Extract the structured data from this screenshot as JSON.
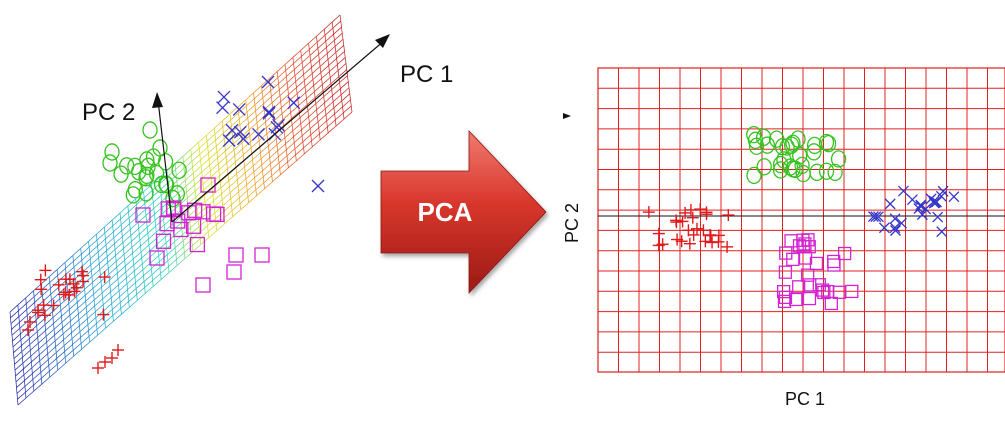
{
  "left_panel": {
    "axis_pc1_label": "PC 1",
    "axis_pc2_label": "PC 2"
  },
  "arrow": {
    "label": "PCA",
    "color_light": "#e8534a",
    "color_dark": "#a01e17"
  },
  "right_panel": {
    "xlabel": "PC 1",
    "ylabel": "PC 2",
    "grid_color": "#e02020"
  },
  "colors": {
    "cross_class": "#e01a1a",
    "circle_class": "#36c21f",
    "x_class": "#3535c9",
    "square_class": "#d323d3"
  },
  "legend_marker_names": [
    "plus-marker",
    "circle-marker",
    "x-marker",
    "square-marker"
  ]
}
